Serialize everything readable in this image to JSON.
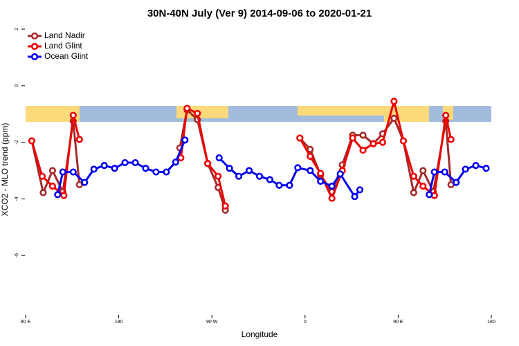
{
  "chart_data": {
    "type": "line",
    "title": "30N-40N July (Ver 9)   2014-09-06 to 2020-01-21",
    "x_label": "Longitude",
    "y_label": "XCO2 - MLO trend (ppm)",
    "xlim": [
      90,
      540
    ],
    "xticks": [
      {
        "value": 90,
        "label": "90 E"
      },
      180,
      {
        "value": 270,
        "label": "90 W"
      },
      {
        "value": 360,
        "label": "0"
      },
      {
        "value": 450,
        "label": "90 E"
      },
      {
        "value": 540,
        "label": "180"
      }
    ],
    "ylim": [
      -8.1,
      2.1
    ],
    "yticks": [
      2,
      0,
      -2,
      -4,
      -6
    ],
    "legend": "top-left",
    "series": [
      {
        "name": "Land Nadir",
        "color": "#a52a2a",
        "x": [
          96,
          107,
          116,
          126,
          136,
          142,
          null,
          239,
          246,
          256,
          266,
          276,
          283,
          null,
          355,
          365,
          375,
          386,
          396,
          406,
          416,
          426,
          435,
          446,
          455,
          465,
          474,
          484,
          496,
          501
        ],
        "values": [
          -1.95,
          -3.78,
          -3.0,
          -3.75,
          -1.25,
          -3.5,
          null,
          -2.2,
          -0.85,
          -1.2,
          -2.75,
          -3.6,
          -4.4,
          null,
          -1.85,
          -2.25,
          -3.15,
          -3.75,
          -2.8,
          -1.75,
          -1.75,
          -2.05,
          -1.7,
          -1.15,
          -1.95,
          -3.78,
          -3.0,
          -3.75,
          -1.25,
          -3.5
        ]
      },
      {
        "name": "Land Glint",
        "color": "#ee0000",
        "x": [
          96,
          106,
          116,
          127,
          136,
          142,
          null,
          240,
          246,
          256,
          266,
          276,
          283,
          null,
          355,
          365,
          375,
          386,
          396,
          406,
          416,
          426,
          435,
          446,
          455,
          465,
          474,
          485,
          496,
          501
        ],
        "values": [
          -1.95,
          -3.2,
          -3.55,
          -3.88,
          -1.05,
          -1.9,
          null,
          -2.55,
          -0.8,
          -0.98,
          -2.75,
          -3.2,
          -4.25,
          null,
          -1.85,
          -2.5,
          -3.1,
          -3.98,
          -3.0,
          -1.85,
          -2.28,
          -2.05,
          -2.0,
          -0.55,
          -1.95,
          -3.2,
          -3.55,
          -3.88,
          -1.05,
          -1.9
        ]
      },
      {
        "name": "Ocean Glint",
        "color": "#0000ee",
        "x": [
          121,
          126,
          136,
          147,
          156,
          166,
          176,
          186,
          196,
          206,
          216,
          226,
          235,
          244,
          null,
          277,
          287,
          296,
          306,
          316,
          326,
          335,
          345,
          353,
          365,
          375,
          386,
          394,
          408,
          413,
          null,
          480,
          485,
          495,
          506,
          515,
          525,
          535
        ],
        "values": [
          -3.85,
          -3.05,
          -3.05,
          -3.42,
          -2.95,
          -2.82,
          -2.92,
          -2.72,
          -2.72,
          -2.92,
          -3.05,
          -3.05,
          -2.7,
          -1.92,
          null,
          -2.55,
          -2.92,
          -3.2,
          -3.0,
          -3.2,
          -3.32,
          -3.52,
          -3.52,
          -2.9,
          -3.0,
          -3.38,
          -3.55,
          -3.12,
          -3.92,
          -3.68,
          null,
          -3.85,
          -3.05,
          -3.05,
          -3.42,
          -2.95,
          -2.82,
          -2.92
        ]
      }
    ]
  }
}
